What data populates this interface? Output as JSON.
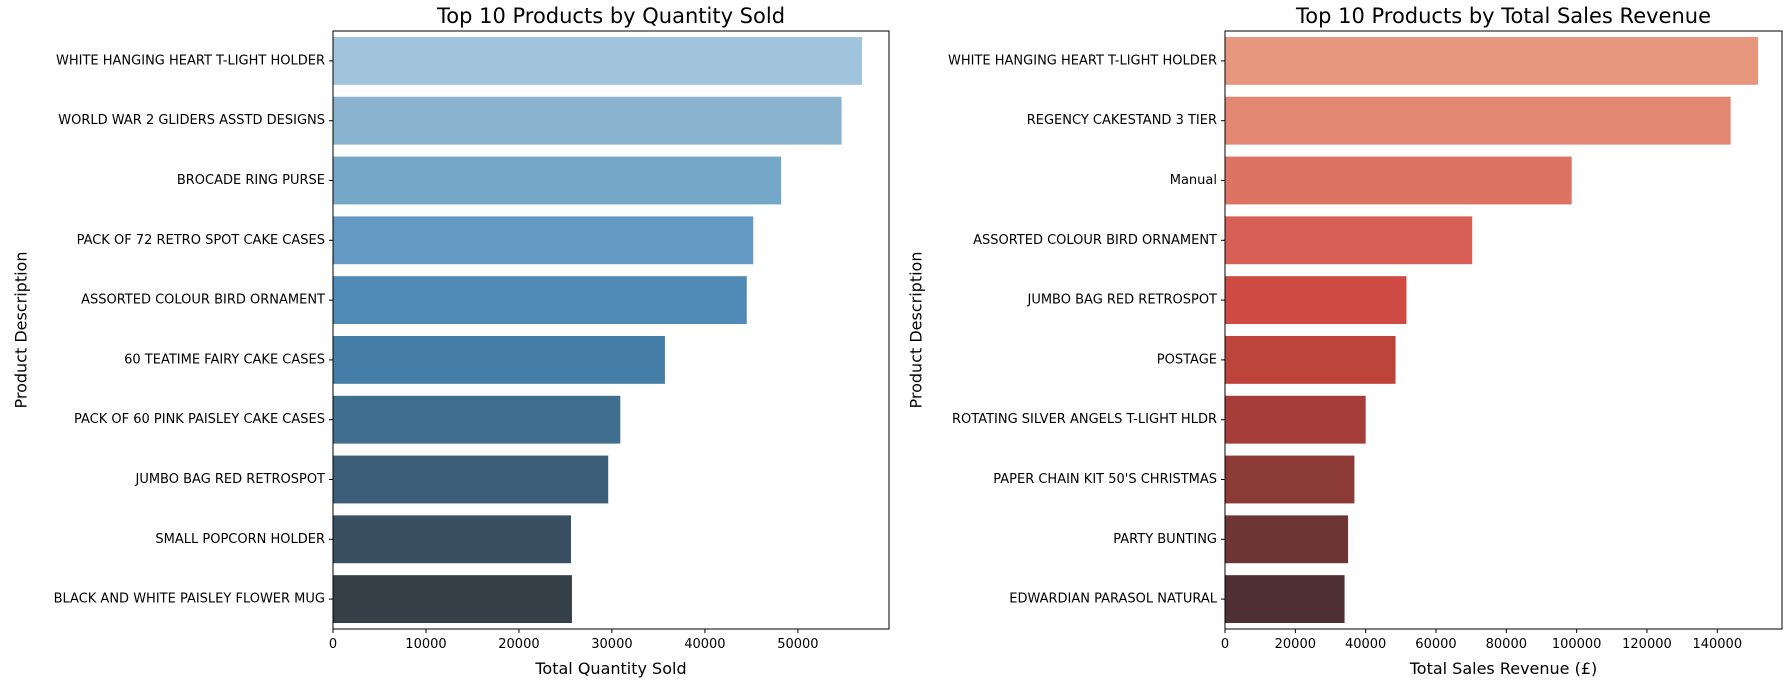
{
  "chart_data": [
    {
      "type": "bar",
      "orientation": "horizontal",
      "title": "Top 10 Products by Quantity Sold",
      "xlabel": "Total Quantity Sold",
      "ylabel": "Product Description",
      "xlim": [
        0,
        59800
      ],
      "xticks": [
        0,
        10000,
        20000,
        30000,
        40000,
        50000
      ],
      "categories": [
        "WHITE HANGING HEART T-LIGHT HOLDER",
        "WORLD WAR 2 GLIDERS ASSTD DESIGNS",
        "BROCADE RING PURSE ",
        "PACK OF 72 RETRO SPOT CAKE CASES",
        "ASSORTED COLOUR BIRD ORNAMENT",
        "60 TEATIME FAIRY CAKE CASES",
        "PACK OF 60 PINK PAISLEY CAKE CASES",
        "JUMBO BAG RED RETROSPOT",
        "SMALL POPCORN HOLDER",
        "BLACK AND WHITE PAISLEY FLOWER MUG"
      ],
      "values": [
        56900,
        54700,
        48200,
        45200,
        44500,
        35700,
        30900,
        29600,
        25600,
        25700
      ],
      "colors": [
        "#9fc4dc",
        "#8ab3d0",
        "#75a7c8",
        "#6399c2",
        "#4f8bb6",
        "#447ea6",
        "#3f6e8e",
        "#3c5e78",
        "#394f62",
        "#353f47"
      ],
      "grid": false
    },
    {
      "type": "bar",
      "orientation": "horizontal",
      "title": "Top 10 Products by Total Sales Revenue",
      "xlabel": "Total Sales Revenue (£)",
      "ylabel": "Product Description",
      "xlim": [
        0,
        158400
      ],
      "xticks": [
        0,
        20000,
        40000,
        60000,
        80000,
        100000,
        120000,
        140000
      ],
      "categories": [
        "WHITE HANGING HEART T-LIGHT HOLDER",
        "REGENCY CAKESTAND 3 TIER",
        "Manual",
        "ASSORTED COLOUR BIRD ORNAMENT",
        "JUMBO BAG RED RETROSPOT",
        "POSTAGE",
        "ROTATING SILVER ANGELS T-LIGHT HLDR",
        "PAPER CHAIN KIT 50'S CHRISTMAS ",
        "PARTY BUNTING",
        "EDWARDIAN PARASOL NATURAL"
      ],
      "values": [
        151600,
        143800,
        98600,
        70300,
        51600,
        48500,
        40000,
        36800,
        35000,
        34000
      ],
      "colors": [
        "#e8977f",
        "#e38672",
        "#dd7463",
        "#d75f55",
        "#cf4a42",
        "#bd433b",
        "#a53d38",
        "#8b3a37",
        "#6d3634",
        "#4f3032"
      ],
      "grid": false
    }
  ]
}
